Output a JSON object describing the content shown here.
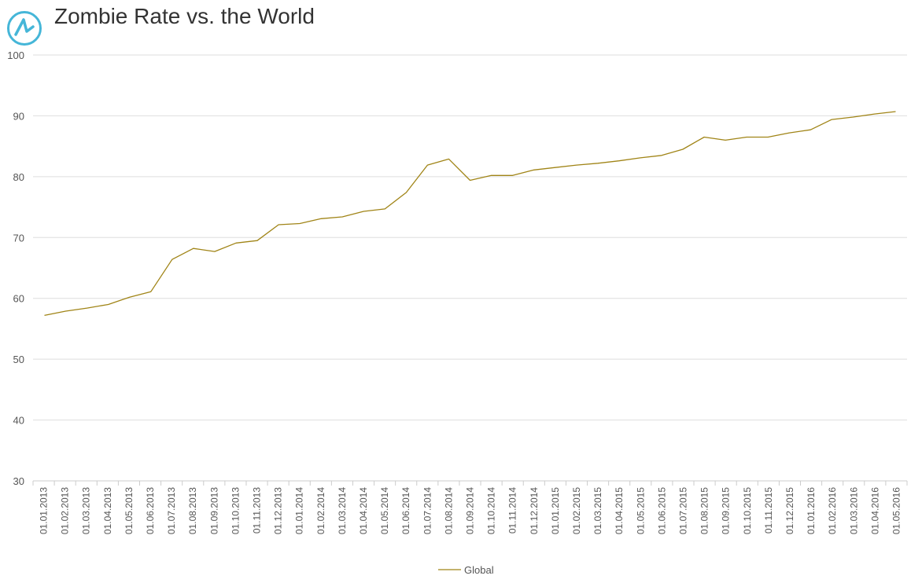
{
  "header": {
    "logo_icon": "anychart-logo-icon",
    "logo_color": "#45b6d8"
  },
  "chart_data": {
    "type": "line",
    "title": "Zombie Rate vs. the World",
    "xlabel": "",
    "ylabel": "",
    "ylim": [
      30,
      100
    ],
    "yticks": [
      30,
      40,
      50,
      60,
      70,
      80,
      90,
      100
    ],
    "grid": true,
    "legend_position": "bottom",
    "categories": [
      "01.01.2013",
      "01.02.2013",
      "01.03.2013",
      "01.04.2013",
      "01.05.2013",
      "01.06.2013",
      "01.07.2013",
      "01.08.2013",
      "01.09.2013",
      "01.10.2013",
      "01.11.2013",
      "01.12.2013",
      "01.01.2014",
      "01.02.2014",
      "01.03.2014",
      "01.04.2014",
      "01.05.2014",
      "01.06.2014",
      "01.07.2014",
      "01.08.2014",
      "01.09.2014",
      "01.10.2014",
      "01.11.2014",
      "01.12.2014",
      "01.01.2015",
      "01.02.2015",
      "01.03.2015",
      "01.04.2015",
      "01.05.2015",
      "01.06.2015",
      "01.07.2015",
      "01.08.2015",
      "01.09.2015",
      "01.10.2015",
      "01.11.2015",
      "01.12.2015",
      "01.01.2016",
      "01.02.2016",
      "01.03.2016",
      "01.04.2016",
      "01.05.2016"
    ],
    "series": [
      {
        "name": "Global",
        "color": "#a08416",
        "values": [
          57.2,
          57.9,
          58.4,
          59.0,
          60.2,
          61.1,
          66.4,
          68.2,
          67.7,
          69.1,
          69.5,
          72.1,
          72.3,
          73.1,
          73.4,
          74.3,
          74.7,
          77.4,
          81.9,
          82.9,
          79.4,
          80.2,
          80.2,
          81.1,
          81.5,
          81.9,
          82.2,
          82.6,
          83.1,
          83.5,
          84.5,
          86.5,
          86.0,
          86.5,
          86.5,
          87.2,
          87.7,
          89.4,
          89.8,
          90.3,
          90.7
        ]
      }
    ]
  }
}
